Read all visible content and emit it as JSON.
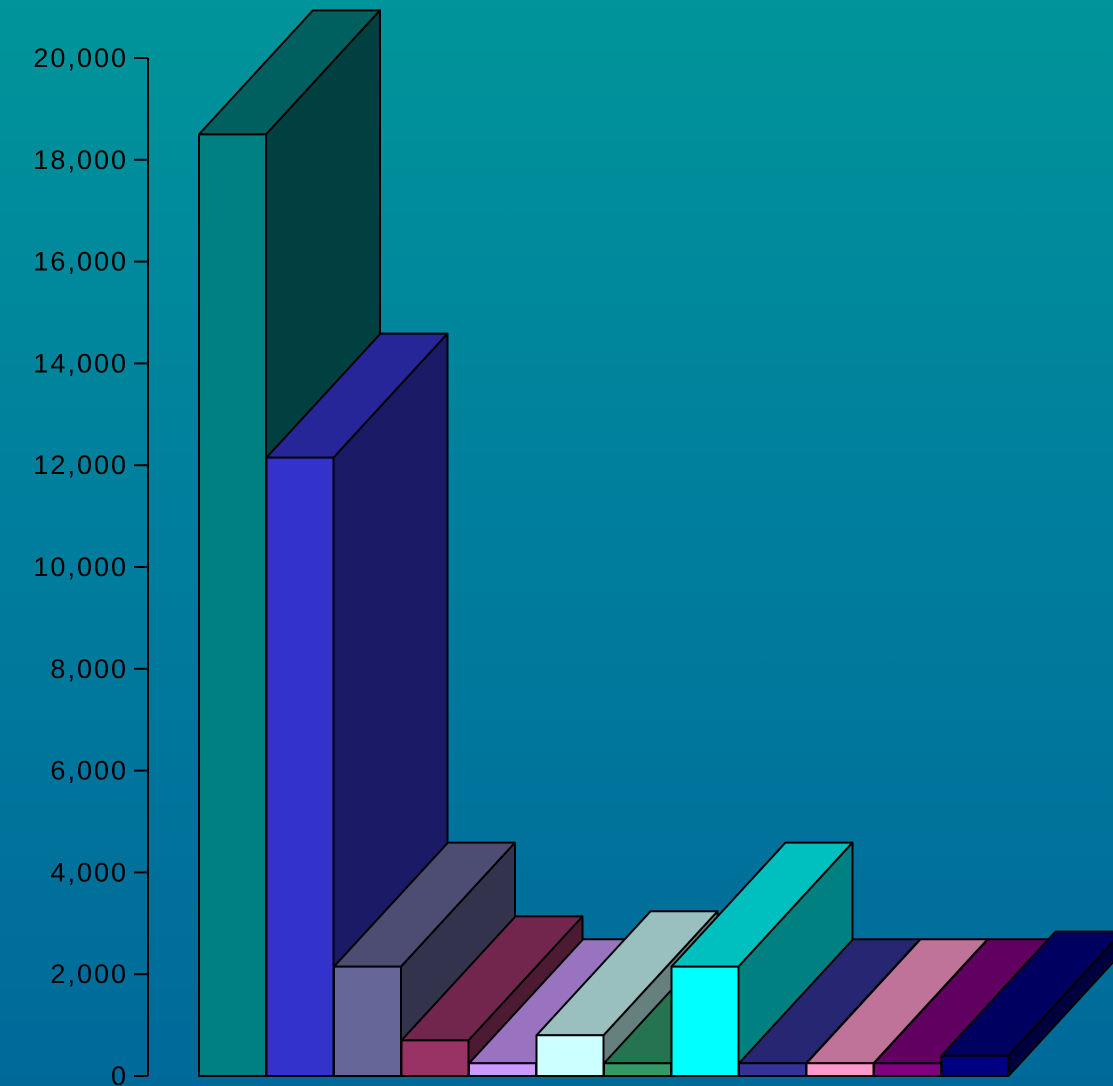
{
  "chart_data": {
    "type": "bar",
    "title": "",
    "xlabel": "",
    "ylabel": "",
    "ylim": [
      0,
      20000
    ],
    "y_ticks": [
      0,
      2000,
      4000,
      6000,
      8000,
      10000,
      12000,
      14000,
      16000,
      18000,
      20000
    ],
    "y_tick_labels": [
      "0",
      "2,000",
      "4,000",
      "6,000",
      "8,000",
      "10,000",
      "12,000",
      "14,000",
      "16,000",
      "18,000",
      "20,000"
    ],
    "grid": false,
    "legend": "none",
    "three_d": true,
    "values": [
      18500,
      12150,
      2150,
      700,
      250,
      800,
      250,
      2150,
      250,
      250,
      250,
      400
    ],
    "colors": {
      "front": [
        "#008080",
        "#3333cc",
        "#666699",
        "#993366",
        "#cc99ff",
        "#ccffff",
        "#339966",
        "#00ffff",
        "#333399",
        "#ff99cc",
        "#800080",
        "#000080"
      ],
      "top": [
        "#006060",
        "#262699",
        "#4d4d73",
        "#73264d",
        "#9973bf",
        "#99bfbf",
        "#267350",
        "#00bfbf",
        "#262673",
        "#bf7399",
        "#600060",
        "#000060"
      ],
      "side": [
        "#004040",
        "#1a1a66",
        "#33334d",
        "#4d1a33",
        "#664d80",
        "#668080",
        "#1a4d33",
        "#008080",
        "#1a1a4d",
        "#80334d",
        "#400040",
        "#000040"
      ]
    }
  }
}
